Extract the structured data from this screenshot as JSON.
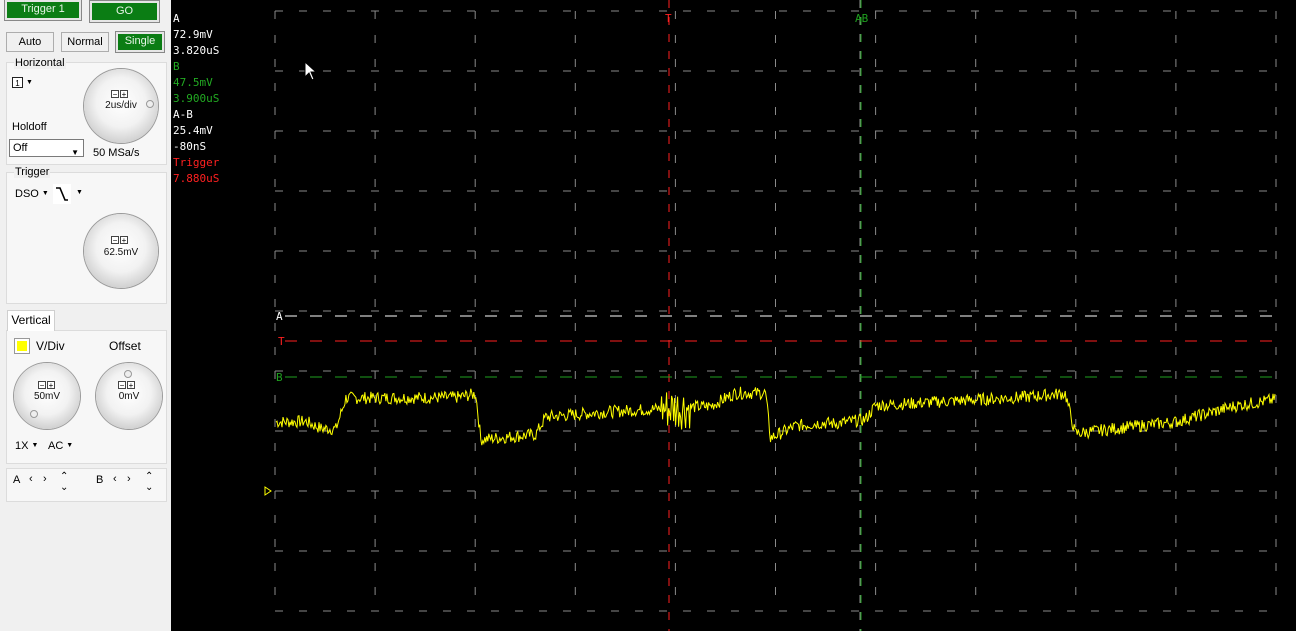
{
  "toolbar": {
    "trigger_tab_label": "Trigger 1",
    "go_label": "GO",
    "mode_buttons": [
      "Auto",
      "Normal",
      "Single"
    ],
    "active_mode": "Single"
  },
  "horizontal": {
    "title": "Horizontal",
    "timebase": "2us/div",
    "sample_rate": "50 MSa/s",
    "holdoff_label": "Holdoff",
    "holdoff_value": "Off"
  },
  "trigger": {
    "title": "Trigger",
    "source": "DSO",
    "level": "62.5mV"
  },
  "vertical": {
    "tab_label": "Vertical",
    "vdiv_label": "V/Div",
    "offset_label": "Offset",
    "vdiv_value": "50mV",
    "offset_value": "0mV",
    "probe": "1X",
    "coupling": "AC",
    "channel_color": "#ffff00",
    "cursor_a_label": "A",
    "cursor_b_label": "B"
  },
  "readout": {
    "a_title": "A",
    "a_volt": "72.9mV",
    "a_time": "3.820uS",
    "b_title": "B",
    "b_volt": "47.5mV",
    "b_time": "3.900uS",
    "ab_title": "A-B",
    "ab_volt": "25.4mV",
    "ab_time": "-80nS",
    "trig_title": "Trigger",
    "trig_time": "7.880uS"
  },
  "markers": {
    "trigger_vertical": "T",
    "cursor_b_vertical": "AB",
    "cursor_a_horizontal": "A",
    "trigger_horizontal": "T",
    "cursor_b_horizontal": "B"
  },
  "colors": {
    "panel_bg": "#f0f0f0",
    "active_green": "#0b7d14",
    "trace": "#ffff00",
    "trigger": "#ff2020",
    "cursor_b": "#1fa01f",
    "cursor_a": "#ffffff",
    "grid": "#8a8a8a",
    "readout_a": "#ffffff",
    "readout_b": "#22aa22",
    "readout_trigger": "#ff2020"
  },
  "icons": {
    "horizontal_mode": "channel-1-icon",
    "trigger_slope": "falling-edge-icon",
    "offset_marker": "ground-marker-icon"
  },
  "waveform_shape": [
    [
      0,
      0.0
    ],
    [
      0.03,
      0.01
    ],
    [
      0.045,
      -0.13
    ],
    [
      0.06,
      -0.14
    ],
    [
      0.07,
      0.48
    ],
    [
      0.18,
      0.49
    ],
    [
      0.2,
      0.56
    ],
    [
      0.205,
      -0.35
    ],
    [
      0.26,
      -0.25
    ],
    [
      0.27,
      0.1
    ],
    [
      0.33,
      0.2
    ],
    [
      0.38,
      0.26
    ],
    [
      0.435,
      0.32
    ],
    [
      0.46,
      0.58
    ],
    [
      0.49,
      0.58
    ],
    [
      0.495,
      -0.32
    ],
    [
      0.52,
      -0.08
    ],
    [
      0.545,
      -0.02
    ],
    [
      0.56,
      -0.03
    ],
    [
      0.59,
      0.05
    ],
    [
      0.6,
      0.33
    ],
    [
      0.66,
      0.4
    ],
    [
      0.75,
      0.5
    ],
    [
      0.79,
      0.57
    ],
    [
      0.8,
      -0.23
    ],
    [
      0.84,
      -0.13
    ],
    [
      0.9,
      0.0
    ],
    [
      0.96,
      0.32
    ],
    [
      1.0,
      0.45
    ]
  ]
}
